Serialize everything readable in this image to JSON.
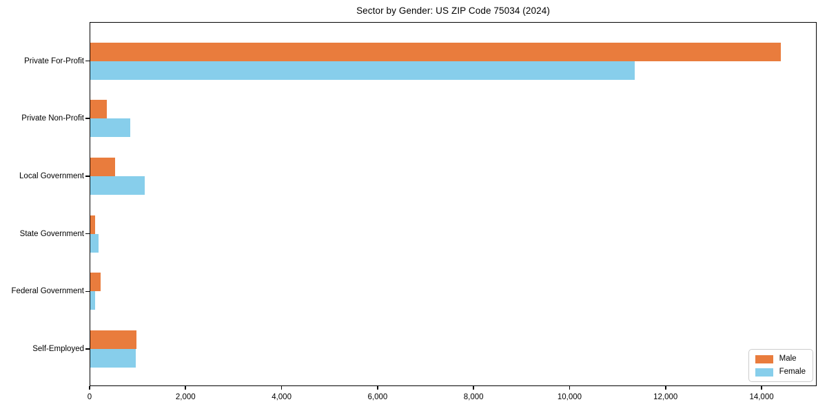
{
  "title": "Sector by Gender: US ZIP Code 75034 (2024)",
  "chart_data": {
    "type": "bar",
    "orientation": "horizontal",
    "title": "Sector by Gender: US ZIP Code 75034 (2024)",
    "xlabel": "",
    "ylabel": "",
    "categories": [
      "Private For-Profit",
      "Private Non-Profit",
      "Local Government",
      "State Government",
      "Federal Government",
      "Self-Employed"
    ],
    "series": [
      {
        "name": "Male",
        "color": "#e97c3d",
        "values": [
          14400,
          360,
          530,
          115,
          225,
          975
        ]
      },
      {
        "name": "Female",
        "color": "#87ceeb",
        "values": [
          11350,
          850,
          1150,
          185,
          115,
          965
        ]
      }
    ],
    "xlim": [
      0,
      15148
    ],
    "x_ticks": [
      0,
      2000,
      4000,
      6000,
      8000,
      10000,
      12000,
      14000
    ],
    "x_tick_labels": [
      "0",
      "2,000",
      "4,000",
      "6,000",
      "8,000",
      "10,000",
      "12,000",
      "14,000"
    ],
    "legend_position": "lower right",
    "grid": false,
    "background_color": "#ffffff",
    "axis_color": "#000000"
  }
}
